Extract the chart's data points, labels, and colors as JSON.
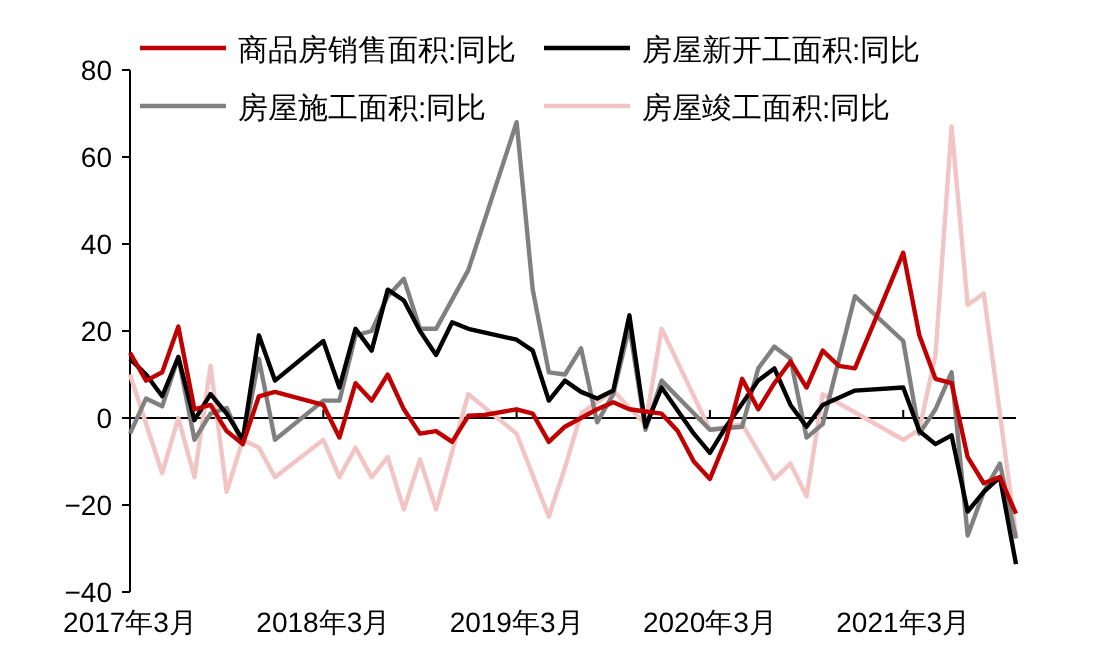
{
  "chart_data": {
    "type": "line",
    "legend": "top",
    "xlim": [
      "2017-03",
      "2021-10"
    ],
    "ylim": [
      -40,
      80
    ],
    "yticks": [
      -40,
      -20,
      0,
      20,
      40,
      60,
      80
    ],
    "xticks": [
      {
        "value": "2017-03",
        "label": "2017年3月"
      },
      {
        "value": "2018-03",
        "label": "2018年3月"
      },
      {
        "value": "2019-03",
        "label": "2019年3月"
      },
      {
        "value": "2020-03",
        "label": "2020年3月"
      },
      {
        "value": "2021-03",
        "label": "2021年3月"
      }
    ],
    "series": [
      {
        "name": "商品房销售面积:同比",
        "color": "#c00000",
        "x": [
          "2017-03",
          "2017-04",
          "2017-05",
          "2017-06",
          "2017-07",
          "2017-08",
          "2017-09",
          "2017-10",
          "2017-11",
          "2017-12",
          "2018-03",
          "2018-04",
          "2018-05",
          "2018-06",
          "2018-07",
          "2018-08",
          "2018-09",
          "2018-10",
          "2018-11",
          "2018-12",
          "2019-01",
          "2019-03",
          "2019-04",
          "2019-05",
          "2019-06",
          "2019-07",
          "2019-08",
          "2019-09",
          "2019-10",
          "2019-11",
          "2019-12",
          "2020-01",
          "2020-02",
          "2020-03",
          "2020-04",
          "2020-05",
          "2020-06",
          "2020-07",
          "2020-08",
          "2020-09",
          "2020-10",
          "2020-11",
          "2020-12",
          "2021-03",
          "2021-04",
          "2021-05",
          "2021-06",
          "2021-07",
          "2021-08",
          "2021-09",
          "2021-10"
        ],
        "values": [
          15,
          8.6,
          10.5,
          21,
          2,
          3,
          -3,
          -6,
          5,
          6,
          3,
          -4.5,
          8,
          4,
          10,
          2,
          -3.6,
          -3,
          -5.5,
          0.5,
          0.7,
          2,
          1,
          -5.5,
          -2,
          0,
          2,
          3.6,
          2,
          1.5,
          1,
          -3,
          -10,
          -14,
          -5,
          9,
          2,
          8,
          13,
          7,
          15.5,
          12,
          11.4,
          38,
          19,
          9,
          8,
          -9,
          -15,
          -13.6,
          -22
        ]
      },
      {
        "name": "房屋新开工面积:同比",
        "color": "#000000",
        "x": [
          "2017-03",
          "2017-04",
          "2017-05",
          "2017-06",
          "2017-07",
          "2017-08",
          "2017-09",
          "2017-10",
          "2017-11",
          "2017-12",
          "2018-03",
          "2018-04",
          "2018-05",
          "2018-06",
          "2018-07",
          "2018-08",
          "2018-09",
          "2018-10",
          "2018-11",
          "2018-12",
          "2019-03",
          "2019-04",
          "2019-05",
          "2019-06",
          "2019-07",
          "2019-08",
          "2019-09",
          "2019-10",
          "2019-11",
          "2019-12",
          "2020-02",
          "2020-03",
          "2020-04",
          "2020-06",
          "2020-07",
          "2020-08",
          "2020-09",
          "2020-10",
          "2020-12",
          "2021-03",
          "2021-04",
          "2021-05",
          "2021-06",
          "2021-07",
          "2021-08",
          "2021-09",
          "2021-10"
        ],
        "values": [
          13.6,
          10,
          5,
          14,
          -0.5,
          5.5,
          1,
          -5,
          19,
          8.6,
          17.7,
          7,
          20.5,
          15.5,
          29.5,
          27,
          20,
          14.5,
          22,
          20.5,
          18,
          15.5,
          4,
          8.6,
          6,
          4.5,
          6.3,
          23.6,
          -2,
          7,
          -3.6,
          -8,
          -2,
          8.6,
          11.4,
          3,
          -2,
          3,
          6.3,
          7,
          -3,
          -6,
          -4,
          -21.5,
          -17,
          -13.6,
          -33.6
        ]
      },
      {
        "name": "房屋施工面积:同比",
        "color": "#808080",
        "x": [
          "2017-03",
          "2017-04",
          "2017-05",
          "2017-06",
          "2017-07",
          "2017-08",
          "2017-09",
          "2017-10",
          "2017-11",
          "2017-12",
          "2018-03",
          "2018-04",
          "2018-05",
          "2018-06",
          "2018-07",
          "2018-08",
          "2018-09",
          "2018-10",
          "2018-12",
          "2019-03",
          "2019-04",
          "2019-05",
          "2019-06",
          "2019-07",
          "2019-08",
          "2019-09",
          "2019-10",
          "2019-11",
          "2019-12",
          "2020-03",
          "2020-05",
          "2020-06",
          "2020-07",
          "2020-08",
          "2020-09",
          "2020-10",
          "2020-12",
          "2021-03",
          "2021-04",
          "2021-05",
          "2021-06",
          "2021-07",
          "2021-08",
          "2021-09",
          "2021-10"
        ],
        "values": [
          -3.6,
          4.5,
          2.7,
          14,
          -5,
          1,
          2.3,
          -6,
          13.6,
          -5,
          4,
          4,
          19,
          20,
          28,
          32,
          20.5,
          20.5,
          34,
          68,
          29.5,
          10.5,
          10,
          16,
          -1,
          5.5,
          21,
          -2.7,
          8.6,
          -2.7,
          -2,
          11.4,
          16.4,
          13.6,
          -4.5,
          -1.4,
          28,
          17.7,
          -3.6,
          2,
          10.5,
          -27,
          -17,
          -10.5,
          -27.7
        ]
      },
      {
        "name": "房屋竣工面积:同比",
        "color": "#f2c4c4",
        "x": [
          "2017-03",
          "2017-05",
          "2017-06",
          "2017-07",
          "2017-08",
          "2017-09",
          "2017-10",
          "2017-11",
          "2017-12",
          "2018-03",
          "2018-04",
          "2018-05",
          "2018-06",
          "2018-07",
          "2018-08",
          "2018-09",
          "2018-10",
          "2018-12",
          "2019-03",
          "2019-05",
          "2019-06",
          "2019-07",
          "2019-09",
          "2019-10",
          "2019-11",
          "2019-12",
          "2020-03",
          "2020-05",
          "2020-07",
          "2020-08",
          "2020-09",
          "2020-10",
          "2021-03",
          "2021-04",
          "2021-05",
          "2021-06",
          "2021-07",
          "2021-08",
          "2021-09",
          "2021-10"
        ],
        "values": [
          10,
          -12.7,
          0,
          -13.6,
          12,
          -17,
          -5,
          -6.8,
          -13.6,
          -5,
          -13.6,
          -6.8,
          -13.6,
          -9,
          -21,
          -9.5,
          -21,
          5.5,
          -3.6,
          -22.7,
          -11.4,
          1,
          6.3,
          2.3,
          -1.4,
          20.5,
          -2.7,
          -1.4,
          -14,
          -10.5,
          -18,
          5.5,
          -5,
          -2.7,
          14.5,
          67,
          26,
          28.6,
          1,
          -27
        ]
      }
    ]
  }
}
